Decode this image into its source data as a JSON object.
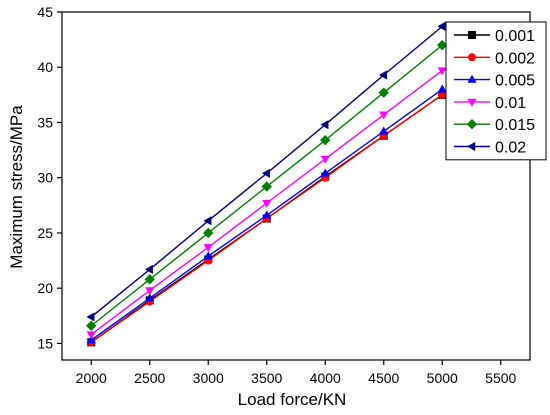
{
  "chart_data": {
    "type": "line",
    "title": "",
    "xlabel": "Load force/KN",
    "ylabel": "Maximum stress/MPa",
    "xlim": [
      1750,
      5750
    ],
    "ylim": [
      13.5,
      45
    ],
    "xticks": [
      2000,
      2500,
      3000,
      3500,
      4000,
      4500,
      5000,
      5500
    ],
    "yticks": [
      15,
      20,
      25,
      30,
      35,
      40,
      45
    ],
    "grid": false,
    "legend_position": "top-right",
    "x": [
      2000,
      2500,
      3000,
      3500,
      4000,
      4500,
      5000
    ],
    "series": [
      {
        "name": "0.001",
        "color": "#000000",
        "marker": "square",
        "values": [
          15.1,
          18.9,
          22.6,
          26.3,
          30.1,
          33.8,
          37.5
        ]
      },
      {
        "name": "0.002",
        "color": "#ff0000",
        "marker": "circle",
        "values": [
          15.1,
          18.8,
          22.5,
          26.3,
          30.0,
          33.8,
          37.5
        ]
      },
      {
        "name": "0.005",
        "color": "#0000ff",
        "marker": "triangle-up",
        "values": [
          15.3,
          19.1,
          22.9,
          26.6,
          30.4,
          34.2,
          38.0
        ]
      },
      {
        "name": "0.01",
        "color": "#ff00ff",
        "marker": "triangle-down",
        "values": [
          15.8,
          19.8,
          23.7,
          27.7,
          31.7,
          35.7,
          39.7
        ]
      },
      {
        "name": "0.015",
        "color": "#008000",
        "marker": "diamond",
        "values": [
          16.6,
          20.8,
          25.0,
          29.2,
          33.4,
          37.7,
          42.0
        ]
      },
      {
        "name": "0.02",
        "color": "#000080",
        "marker": "triangle-left",
        "values": [
          17.4,
          21.7,
          26.1,
          30.4,
          34.8,
          39.3,
          43.7
        ]
      }
    ]
  }
}
